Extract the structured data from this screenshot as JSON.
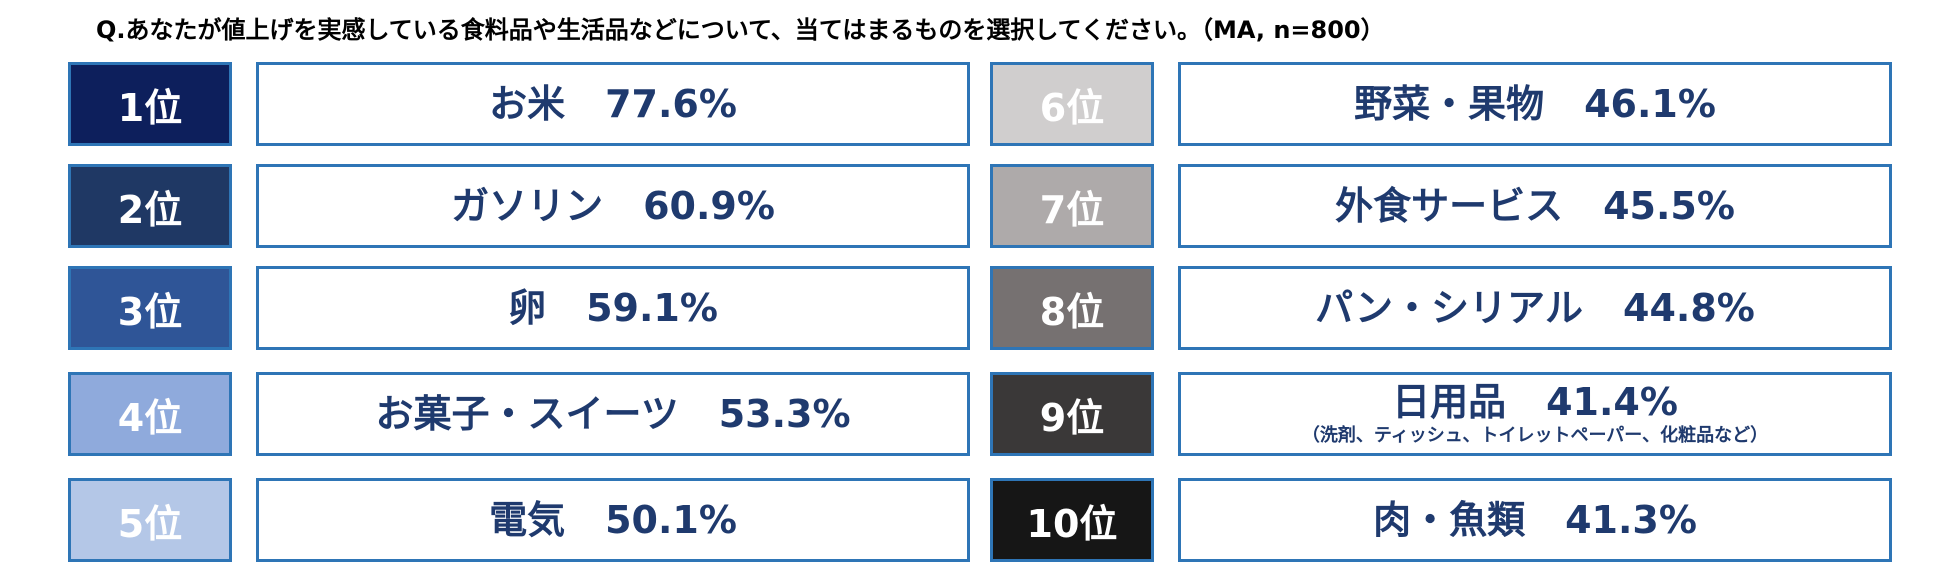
{
  "question": "Q.あなたが値上げを実感している食料品や生活品などについて、当てはまるものを選択してください。（MA, n=800）",
  "chart_data": {
    "type": "table",
    "unit": "%",
    "items": [
      {
        "rank": "1位",
        "name": "お米",
        "value": 77.6,
        "value_label": "77.6%",
        "rank_bg": "#0d1f5c",
        "rank_fg": "#ffffff"
      },
      {
        "rank": "2位",
        "name": "ガソリン",
        "value": 60.9,
        "value_label": "60.9%",
        "rank_bg": "#1f3864",
        "rank_fg": "#ffffff"
      },
      {
        "rank": "3位",
        "name": "卵",
        "value": 59.1,
        "value_label": "59.1%",
        "rank_bg": "#2f5597",
        "rank_fg": "#ffffff"
      },
      {
        "rank": "4位",
        "name": "お菓子・スイーツ",
        "value": 53.3,
        "value_label": "53.3%",
        "rank_bg": "#8faadc",
        "rank_fg": "#ffffff"
      },
      {
        "rank": "5位",
        "name": "電気",
        "value": 50.1,
        "value_label": "50.1%",
        "rank_bg": "#b4c7e7",
        "rank_fg": "#ffffff"
      },
      {
        "rank": "6位",
        "name": "野菜・果物",
        "value": 46.1,
        "value_label": "46.1%",
        "rank_bg": "#d0cece",
        "rank_fg": "#ffffff"
      },
      {
        "rank": "7位",
        "name": "外食サービス",
        "value": 45.5,
        "value_label": "45.5%",
        "rank_bg": "#aeaaaa",
        "rank_fg": "#ffffff"
      },
      {
        "rank": "8位",
        "name": "パン・シリアル",
        "value": 44.8,
        "value_label": "44.8%",
        "rank_bg": "#767171",
        "rank_fg": "#ffffff"
      },
      {
        "rank": "9位",
        "name": "日用品",
        "value": 41.4,
        "value_label": "41.4%",
        "note": "（洗剤、ティッシュ、トイレットペーパー、化粧品など）",
        "rank_bg": "#3a3838",
        "rank_fg": "#ffffff"
      },
      {
        "rank": "10位",
        "name": "肉・魚類",
        "value": 41.3,
        "value_label": "41.3%",
        "rank_bg": "#161616",
        "rank_fg": "#ffffff"
      }
    ]
  }
}
